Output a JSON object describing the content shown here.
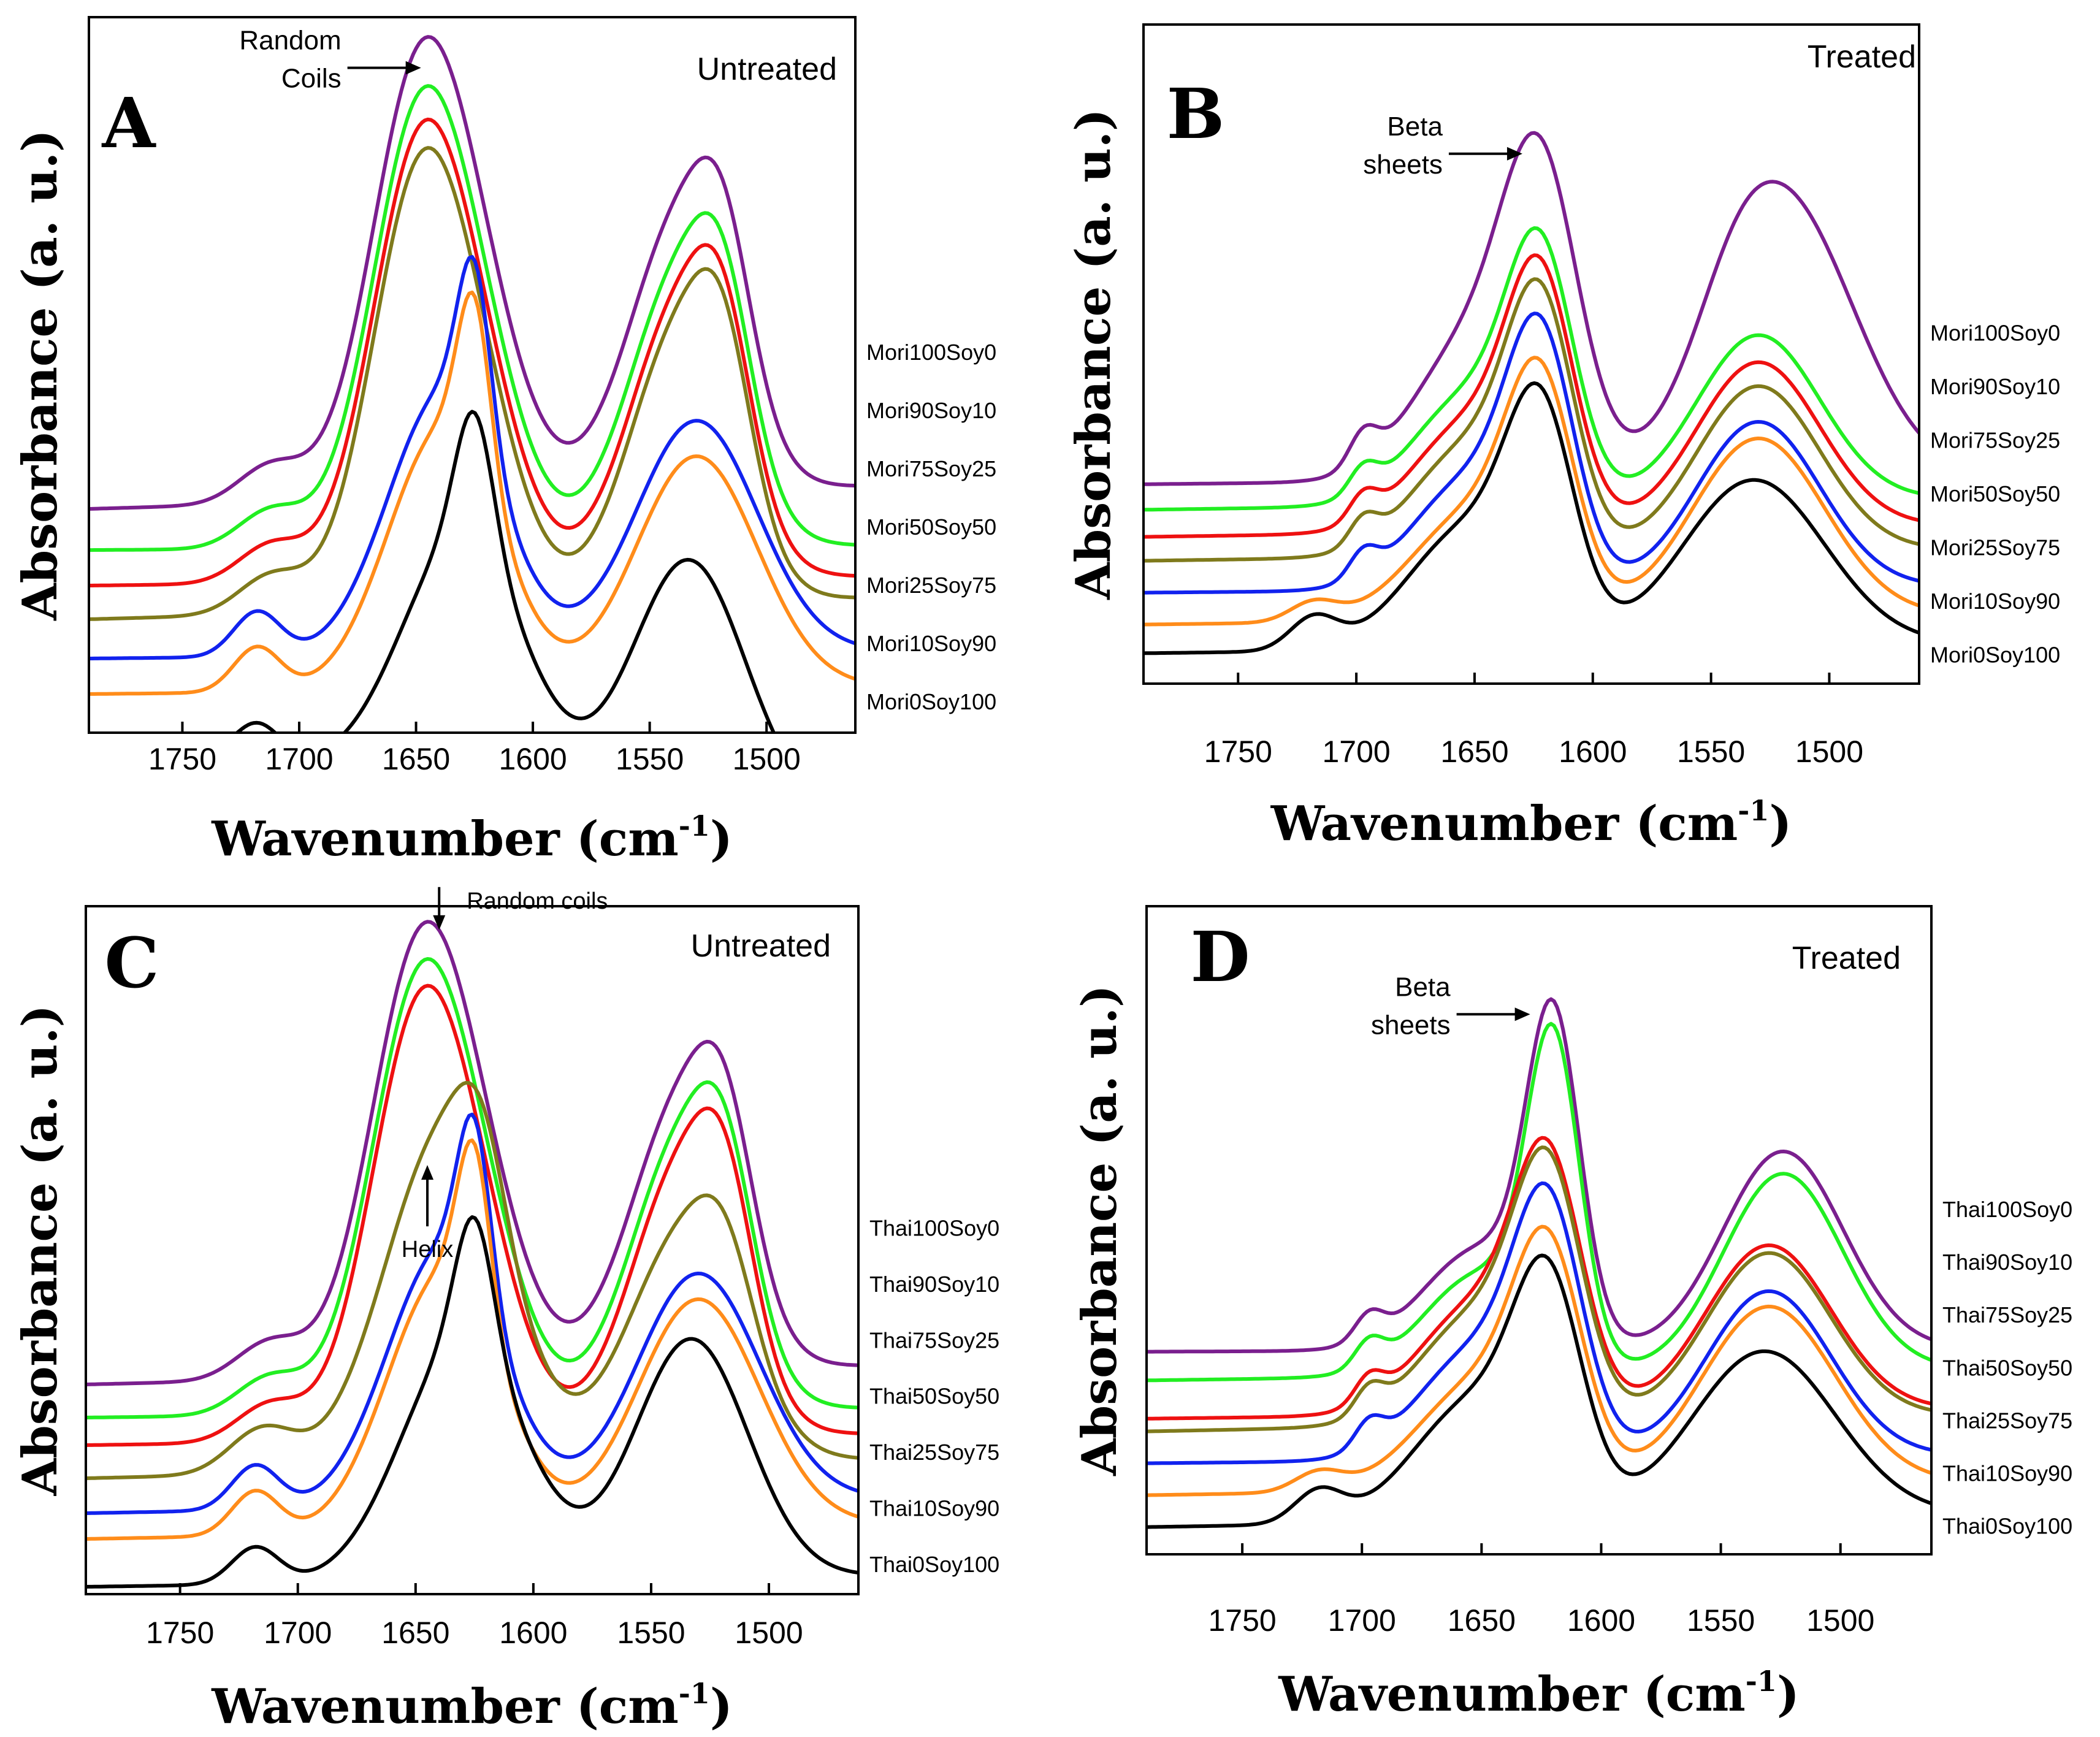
{
  "figure": {
    "xlabel_main": "Wavenumber (cm",
    "xlabel_sup": "-1",
    "xlabel_close": ")",
    "ylabel": "Absorbance (a. u.)"
  },
  "chart_data": [
    {
      "panel": "A",
      "type": "line",
      "condition": "Untreated",
      "xlim": [
        1790,
        1462
      ],
      "xticks": [
        1750,
        1700,
        1650,
        1600,
        1550,
        1500
      ],
      "xlabel": "Wavenumber (cm-1)",
      "ylabel": "Absorbance (a. u.)",
      "annotations": [
        {
          "lines": [
            "Random",
            "Coils"
          ],
          "x": 1640,
          "arrow": "right"
        }
      ],
      "series": [
        {
          "name": "Mori100Soy0",
          "color": "#7a1f8e",
          "offset": 0.5,
          "kind": "untreatedRich",
          "tail": 0.06
        },
        {
          "name": "Mori90Soy10",
          "color": "#22ee22",
          "offset": 0.39,
          "kind": "untreatedRich",
          "tail": 0.012
        },
        {
          "name": "Mori75Soy25",
          "color": "#ee1111",
          "offset": 0.295,
          "kind": "untreatedRich",
          "tail": 0.024
        },
        {
          "name": "Mori50Soy50",
          "color": "#7f7a1c",
          "offset": 0.205,
          "kind": "untreatedRich",
          "tail": 0.056
        },
        {
          "name": "Mori25Soy75",
          "color": "#1122ee",
          "offset": 0.1,
          "kind": "untreatedMid",
          "tail": 0.02
        },
        {
          "name": "Mori10Soy90",
          "color": "#ff8c1a",
          "offset": 0.005,
          "kind": "untreatedMid",
          "tail": 0.02
        },
        {
          "name": "Mori0Soy100",
          "color": "#000000",
          "offset": -0.13,
          "kind": "untreatedSoy",
          "tail": -0.2
        }
      ]
    },
    {
      "panel": "B",
      "type": "line",
      "condition": "Treated",
      "xlim": [
        1790,
        1462
      ],
      "xticks": [
        1750,
        1700,
        1650,
        1600,
        1550,
        1500
      ],
      "xlabel": "Wavenumber (cm-1)",
      "ylabel": "Absorbance (a. u.)",
      "annotations": [
        {
          "lines": [
            "Beta",
            "sheets"
          ],
          "x": 1622,
          "arrow": "right"
        }
      ],
      "series": [
        {
          "name": "Mori100Soy0",
          "color": "#7a1f8e",
          "offset": 0.51,
          "kind": "treatedSilk",
          "tail": 0.025
        },
        {
          "name": "Mori90Soy10",
          "color": "#22ee22",
          "offset": 0.43,
          "kind": "treatedMix",
          "tail": 0.035
        },
        {
          "name": "Mori75Soy25",
          "color": "#ee1111",
          "offset": 0.345,
          "kind": "treatedMix",
          "tail": 0.035
        },
        {
          "name": "Mori50Soy50",
          "color": "#7f7a1c",
          "offset": 0.27,
          "kind": "treatedMix",
          "tail": 0.035
        },
        {
          "name": "Mori25Soy75",
          "color": "#1122ee",
          "offset": 0.17,
          "kind": "treatedMix",
          "tail": 0.02
        },
        {
          "name": "Mori10Soy90",
          "color": "#ff8c1a",
          "offset": 0.07,
          "kind": "treatedSoy",
          "tail": 0.03
        },
        {
          "name": "Mori0Soy100",
          "color": "#000000",
          "offset": -0.02,
          "kind": "treatedSoyLow",
          "tail": 0.03
        }
      ]
    },
    {
      "panel": "C",
      "type": "line",
      "condition": "Untreated",
      "xlim": [
        1790,
        1462
      ],
      "xticks": [
        1750,
        1700,
        1650,
        1600,
        1550,
        1500
      ],
      "xlabel": "Wavenumber (cm-1)",
      "ylabel": "Absorbance (a. u.)",
      "annotations": [
        {
          "lines": [
            "Random coils"
          ],
          "x": 1640,
          "arrow": "down"
        },
        {
          "lines": [
            "Helix"
          ],
          "x": 1645,
          "arrow": "up"
        }
      ],
      "series": [
        {
          "name": "Thai100Soy0",
          "color": "#7a1f8e",
          "offset": 0.47,
          "kind": "untreatedRich",
          "tail": 0.05
        },
        {
          "name": "Thai90Soy10",
          "color": "#22ee22",
          "offset": 0.38,
          "kind": "untreatedRich",
          "tail": 0.025
        },
        {
          "name": "Thai75Soy25",
          "color": "#ee1111",
          "offset": 0.305,
          "kind": "untreatedRich",
          "tail": 0.03
        },
        {
          "name": "Thai50Soy50",
          "color": "#7f7a1c",
          "offset": 0.215,
          "kind": "untreatedHelix",
          "tail": 0.05
        },
        {
          "name": "Thai25Soy75",
          "color": "#1122ee",
          "offset": 0.12,
          "kind": "untreatedMid",
          "tail": 0.04
        },
        {
          "name": "Thai10Soy90",
          "color": "#ff8c1a",
          "offset": 0.05,
          "kind": "untreatedMid",
          "tail": 0.04
        },
        {
          "name": "Thai0Soy100",
          "color": "#000000",
          "offset": -0.08,
          "kind": "untreatedSoy",
          "tail": 0.03
        }
      ]
    },
    {
      "panel": "D",
      "type": "line",
      "condition": "Treated",
      "xlim": [
        1790,
        1462
      ],
      "xticks": [
        1750,
        1700,
        1650,
        1600,
        1550,
        1500
      ],
      "xlabel": "Wavenumber (cm-1)",
      "ylabel": "Absorbance (a. u.)",
      "annotations": [
        {
          "lines": [
            "Beta",
            "sheets"
          ],
          "x": 1622,
          "arrow": "right"
        }
      ],
      "series": [
        {
          "name": "Thai100Soy0",
          "color": "#7a1f8e",
          "offset": 0.52,
          "kind": "treatedSharp",
          "tail": 0.01
        },
        {
          "name": "Thai90Soy10",
          "color": "#22ee22",
          "offset": 0.43,
          "kind": "treatedSharp",
          "tail": 0.035
        },
        {
          "name": "Thai75Soy25",
          "color": "#ee1111",
          "offset": 0.31,
          "kind": "treatedMix",
          "tail": 0.03
        },
        {
          "name": "Thai50Soy50",
          "color": "#7f7a1c",
          "offset": 0.27,
          "kind": "treatedMix",
          "tail": 0.05
        },
        {
          "name": "Thai25Soy75",
          "color": "#1122ee",
          "offset": 0.17,
          "kind": "treatedMix",
          "tail": 0.025
        },
        {
          "name": "Thai10Soy90",
          "color": "#ff8c1a",
          "offset": 0.07,
          "kind": "treatedSoy",
          "tail": 0.04
        },
        {
          "name": "Thai0Soy100",
          "color": "#000000",
          "offset": -0.03,
          "kind": "treatedSoyLow",
          "tail": 0.04
        }
      ]
    }
  ]
}
